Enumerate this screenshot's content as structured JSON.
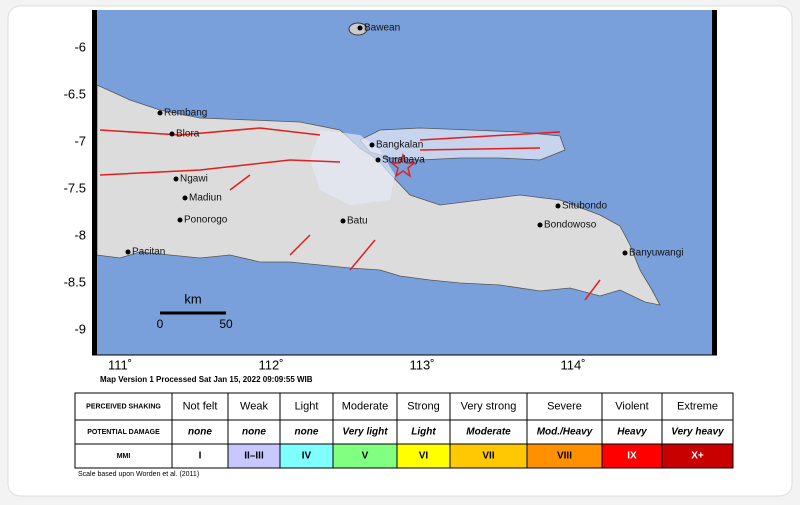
{
  "map": {
    "lat_ticks": [
      "-6",
      "-6.5",
      "-7",
      "-7.5",
      "-8",
      "-8.5",
      "-9"
    ],
    "lon_ticks": [
      "111˚",
      "112˚",
      "113˚",
      "114˚"
    ],
    "places": [
      "Bawean",
      "Rembang",
      "Blora",
      "Ngawi",
      "Madiun",
      "Ponorogo",
      "Pacitan",
      "Bangkalan",
      "Surabaya",
      "Batu",
      "Situbondo",
      "Bondowoso",
      "Banyuwangi"
    ],
    "scale": {
      "unit": "km",
      "ticks": [
        "0",
        "50"
      ]
    },
    "version": "Map Version 1 Processed Sat Jan 15, 2022 09:09:55 WIB"
  },
  "legend": {
    "row_headers": [
      "PERCEIVED SHAKING",
      "POTENTIAL DAMAGE",
      "MMI"
    ],
    "columns": [
      {
        "shaking": "Not felt",
        "damage": "none",
        "mmi": "I",
        "color": "#ffffff"
      },
      {
        "shaking": "Weak",
        "damage": "none",
        "mmi": "II–III",
        "color": "#c8c8ff"
      },
      {
        "shaking": "Light",
        "damage": "none",
        "mmi": "IV",
        "color": "#80ffff"
      },
      {
        "shaking": "Moderate",
        "damage": "Very light",
        "mmi": "V",
        "color": "#80ff80"
      },
      {
        "shaking": "Strong",
        "damage": "Light",
        "mmi": "VI",
        "color": "#ffff00"
      },
      {
        "shaking": "Very strong",
        "damage": "Moderate",
        "mmi": "VII",
        "color": "#ffc800"
      },
      {
        "shaking": "Severe",
        "damage": "Mod./Heavy",
        "mmi": "VIII",
        "color": "#ff9100"
      },
      {
        "shaking": "Violent",
        "damage": "Heavy",
        "mmi": "IX",
        "color": "#ff0000"
      },
      {
        "shaking": "Extreme",
        "damage": "Very heavy",
        "mmi": "X+",
        "color": "#c80000"
      }
    ],
    "footnote": "Scale based upon Worden et al. (2011)"
  }
}
